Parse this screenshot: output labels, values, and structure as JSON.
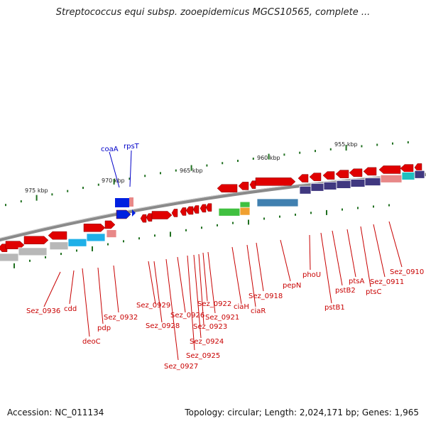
{
  "title": "Streptococcus equi subsp. zooepidemicus MGCS10565, complete ...",
  "footer": {
    "accession": "Accession: NC_011134",
    "topology": "Topology: circular; Length: 2,024,171 bp; Genes: 1,965"
  },
  "scale_labels": [
    "975 kbp",
    "970 kbp",
    "965 kbp",
    "960 kbp",
    "955 kbp"
  ],
  "gene_labels_red": [
    "Sez_0936",
    "cdd",
    "deoC",
    "pdp",
    "Sez_0932",
    "Sez_0929",
    "Sez_0928",
    "Sez_0927",
    "Sez_0926",
    "Sez_0925",
    "Sez_0924",
    "Sez_0923",
    "Sez_0922",
    "Sez_0921",
    "ciaH",
    "ciaR",
    "Sez_0918",
    "pepN",
    "phoU",
    "pstB1",
    "pstB2",
    "ptsA",
    "ptsC",
    "Sez_0911",
    "Sez_0910"
  ],
  "gene_labels_blue": [
    "coaA",
    "rpsT"
  ],
  "colors": {
    "forward_gene": "#e00000",
    "cds_gray": "#b8b8b8",
    "cds_cyan": "#1fb0e8",
    "cds_pink": "#e88888",
    "cds_green": "#40c040",
    "cds_orange": "#f0a030",
    "cds_steel": "#4080b0",
    "cds_navy": "#403880",
    "cds_teal": "#20c0c0",
    "rna_blue": "#0020e0",
    "backbone": "#888888",
    "tick_green": "#207020"
  }
}
